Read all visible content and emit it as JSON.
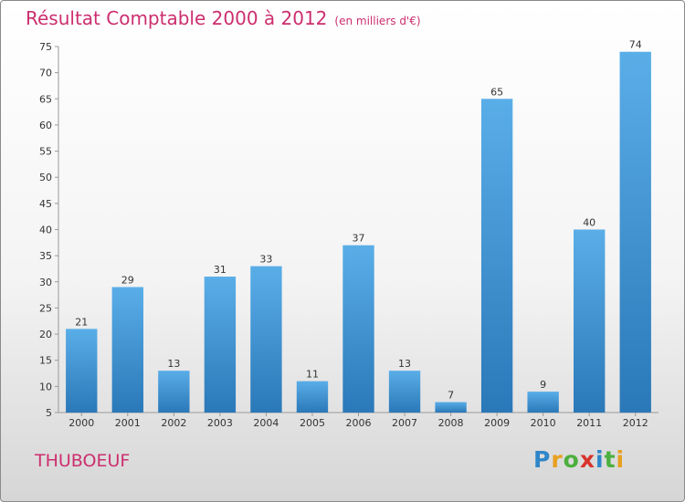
{
  "chart_data": {
    "type": "bar",
    "title": "Résultat Comptable 2000 à 2012",
    "subtitle": "(en milliers d'€)",
    "categories": [
      "2000",
      "2001",
      "2002",
      "2003",
      "2004",
      "2005",
      "2006",
      "2007",
      "2008",
      "2009",
      "2010",
      "2011",
      "2012"
    ],
    "values": [
      21,
      29,
      13,
      31,
      33,
      11,
      37,
      13,
      7,
      65,
      9,
      40,
      74
    ],
    "ylim": [
      5,
      75
    ],
    "yticks": [
      5,
      10,
      15,
      20,
      25,
      30,
      35,
      40,
      45,
      50,
      55,
      60,
      65,
      70,
      75
    ],
    "grid": false,
    "xlabel": "",
    "ylabel": ""
  },
  "commune": "THUBOEUF",
  "logo": {
    "letters": [
      "P",
      "r",
      "o",
      "x",
      "i",
      "t",
      "i"
    ],
    "colors": [
      "#2f86c8",
      "#e8a020",
      "#4caf3e",
      "#d8342c",
      "#2f86c8",
      "#4caf3e",
      "#e8a020"
    ]
  },
  "colors": {
    "title": "#cc2e6e",
    "bar_top": "#5aaee8",
    "bar_bottom": "#2a78b8"
  }
}
